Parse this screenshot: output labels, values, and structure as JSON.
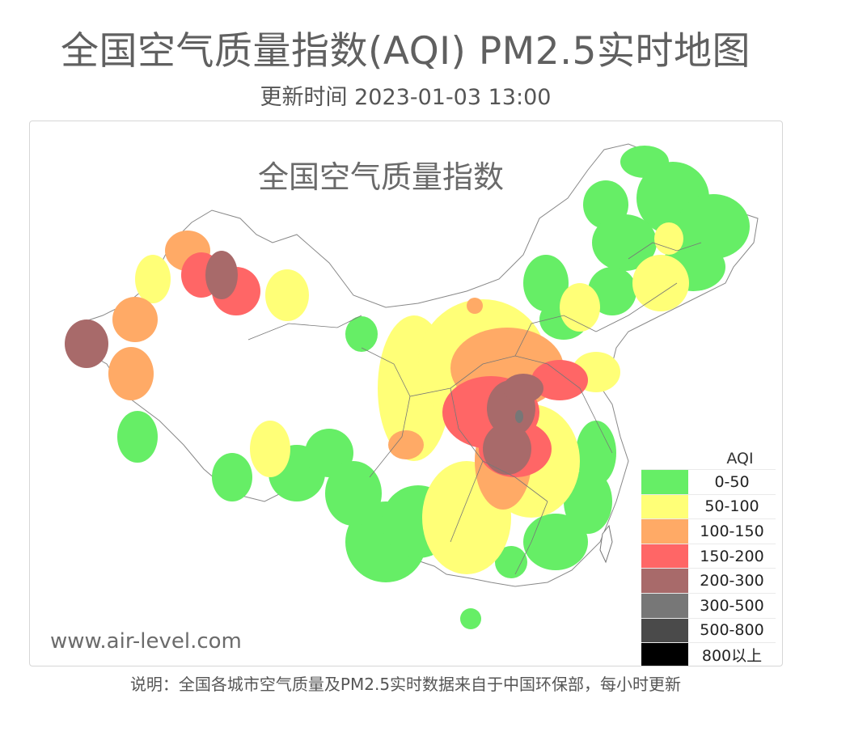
{
  "title": "全国空气质量指数(AQI) PM2.5实时地图",
  "update_time": "更新时间 2023-01-03 13:00",
  "map": {
    "heading": "全国空气质量指数",
    "watermark": "www.air-level.com"
  },
  "legend": {
    "title": "AQI",
    "items": [
      {
        "label": "0-50",
        "color": "#66ee66"
      },
      {
        "label": "50-100",
        "color": "#ffff77"
      },
      {
        "label": "100-150",
        "color": "#ffaa66"
      },
      {
        "label": "150-200",
        "color": "#ff6666"
      },
      {
        "label": "200-300",
        "color": "#a86a6a"
      },
      {
        "label": "300-500",
        "color": "#777777"
      },
      {
        "label": "500-800",
        "color": "#4a4a4a"
      },
      {
        "label": "800以上",
        "color": "#000000"
      }
    ]
  },
  "footer": "说明：全国各城市空气质量及PM2.5实时数据来自于中国环保部，每小时更新"
}
